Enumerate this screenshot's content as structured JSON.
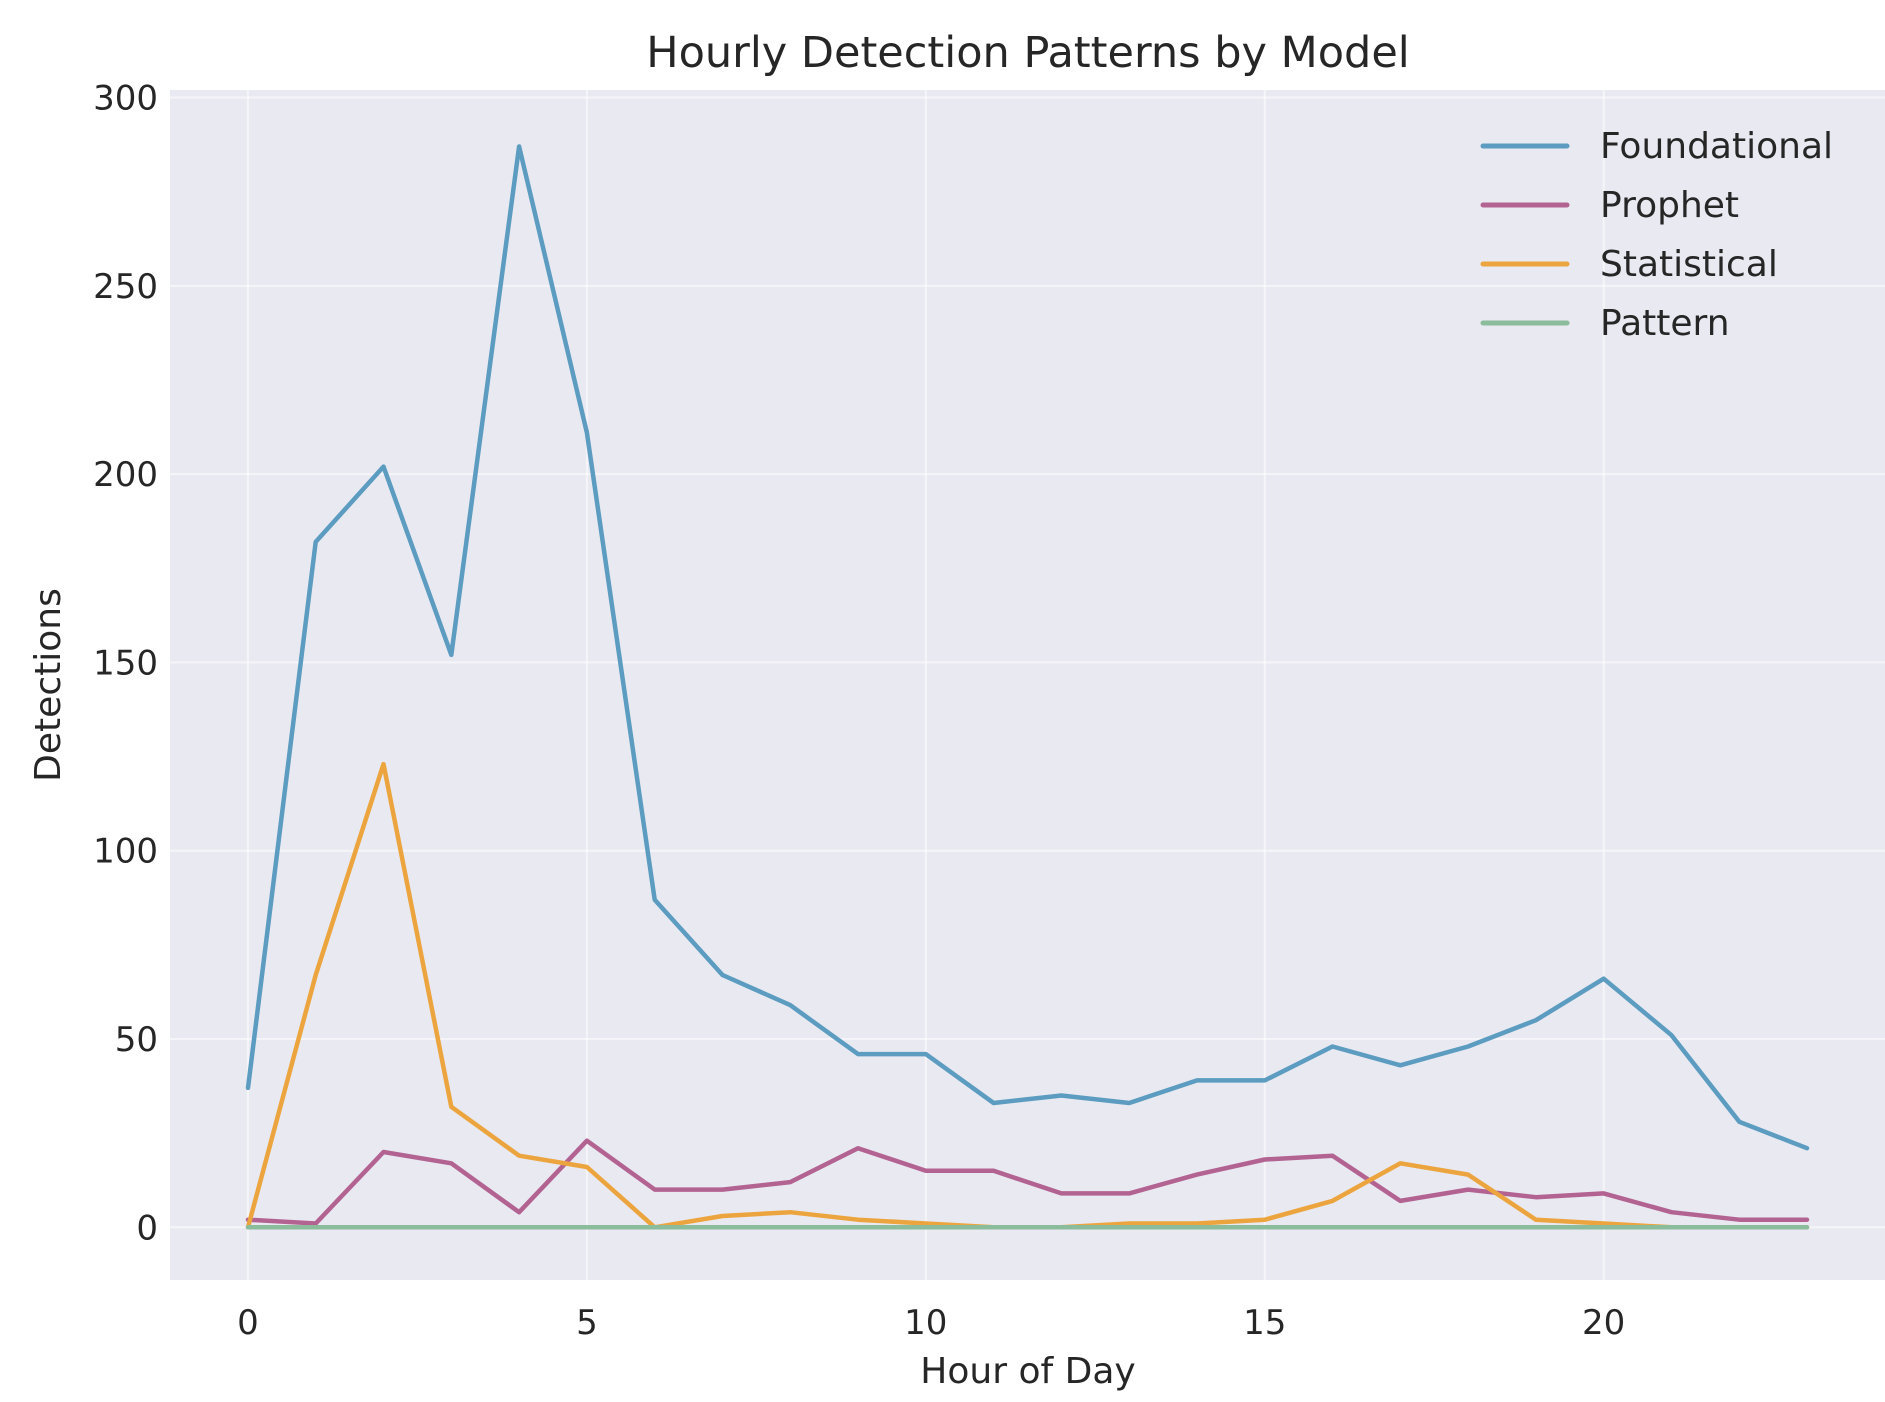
{
  "chart_data": {
    "type": "line",
    "title": "Hourly Detection Patterns by Model",
    "xlabel": "Hour of Day",
    "ylabel": "Detections",
    "x": [
      0,
      1,
      2,
      3,
      4,
      5,
      6,
      7,
      8,
      9,
      10,
      11,
      12,
      13,
      14,
      15,
      16,
      17,
      18,
      19,
      20,
      21,
      22,
      23
    ],
    "xlim": [
      -1.15,
      24.15
    ],
    "ylim": [
      -14,
      302
    ],
    "xticks": [
      0,
      5,
      10,
      15,
      20
    ],
    "yticks": [
      0,
      50,
      100,
      150,
      200,
      250,
      300
    ],
    "grid": true,
    "legend_position": "top-right",
    "background": "#e9e9f1",
    "series": [
      {
        "name": "Foundational",
        "color": "#5b9cc0",
        "values": [
          37,
          182,
          202,
          152,
          287,
          211,
          87,
          67,
          59,
          46,
          46,
          33,
          35,
          33,
          39,
          39,
          48,
          43,
          48,
          55,
          66,
          51,
          28,
          21
        ]
      },
      {
        "name": "Prophet",
        "color": "#b36392",
        "values": [
          2,
          1,
          20,
          17,
          4,
          23,
          10,
          10,
          12,
          21,
          15,
          15,
          9,
          9,
          14,
          18,
          19,
          7,
          10,
          8,
          9,
          4,
          2,
          2
        ]
      },
      {
        "name": "Statistical",
        "color": "#eca53e",
        "values": [
          0,
          67,
          123,
          32,
          19,
          16,
          0,
          3,
          4,
          2,
          1,
          0,
          0,
          1,
          1,
          2,
          7,
          17,
          14,
          2,
          1,
          0,
          0,
          0
        ]
      },
      {
        "name": "Pattern",
        "color": "#8bbc9c",
        "values": [
          0,
          0,
          0,
          0,
          0,
          0,
          0,
          0,
          0,
          0,
          0,
          0,
          0,
          0,
          0,
          0,
          0,
          0,
          0,
          0,
          0,
          0,
          0,
          0
        ]
      }
    ]
  }
}
